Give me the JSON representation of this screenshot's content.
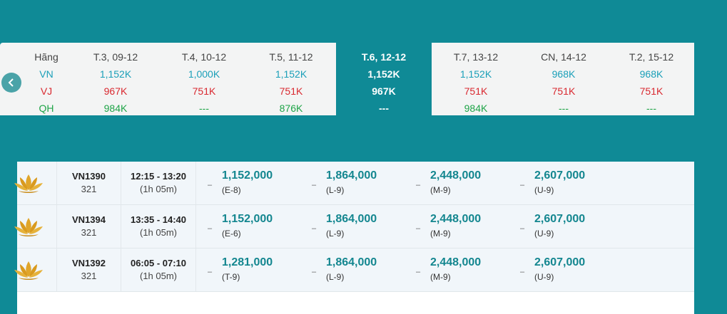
{
  "date_strip": {
    "prev_icon": "chevron-left-icon",
    "airline_header": "Hãng",
    "airline_codes": [
      "VN",
      "VJ",
      "QH"
    ],
    "days": [
      {
        "label": "T.3, 09-12",
        "vn": "1,152K",
        "vj": "967K",
        "qh": "984K",
        "selected": false
      },
      {
        "label": "T.4, 10-12",
        "vn": "1,000K",
        "vj": "751K",
        "qh": "---",
        "selected": false
      },
      {
        "label": "T.5, 11-12",
        "vn": "1,152K",
        "vj": "751K",
        "qh": "876K",
        "selected": false
      },
      {
        "label": "T.6, 12-12",
        "vn": "1,152K",
        "vj": "967K",
        "qh": "---",
        "selected": true
      },
      {
        "label": "T.7, 13-12",
        "vn": "1,152K",
        "vj": "751K",
        "qh": "984K",
        "selected": false
      },
      {
        "label": "CN, 14-12",
        "vn": "968K",
        "vj": "751K",
        "qh": "---",
        "selected": false
      },
      {
        "label": "T.2, 15-12",
        "vn": "968K",
        "vj": "751K",
        "qh": "---",
        "selected": false
      }
    ]
  },
  "flights": [
    {
      "logo_icon": "lotus-logo-icon",
      "number": "VN1390",
      "aircraft": "321",
      "time": "12:15 - 13:20",
      "duration": "(1h 05m)",
      "fares": [
        {
          "price": "1,152,000",
          "class": "(E-8)"
        },
        {
          "price": "1,864,000",
          "class": "(L-9)"
        },
        {
          "price": "2,448,000",
          "class": "(M-9)"
        },
        {
          "price": "2,607,000",
          "class": "(U-9)"
        }
      ]
    },
    {
      "logo_icon": "lotus-logo-icon",
      "number": "VN1394",
      "aircraft": "321",
      "time": "13:35 - 14:40",
      "duration": "(1h 05m)",
      "fares": [
        {
          "price": "1,152,000",
          "class": "(E-6)"
        },
        {
          "price": "1,864,000",
          "class": "(L-9)"
        },
        {
          "price": "2,448,000",
          "class": "(M-9)"
        },
        {
          "price": "2,607,000",
          "class": "(U-9)"
        }
      ]
    },
    {
      "logo_icon": "lotus-logo-icon",
      "number": "VN1392",
      "aircraft": "321",
      "time": "06:05 - 07:10",
      "duration": "(1h 05m)",
      "fares": [
        {
          "price": "1,281,000",
          "class": "(T-9)"
        },
        {
          "price": "1,864,000",
          "class": "(L-9)"
        },
        {
          "price": "2,448,000",
          "class": "(M-9)"
        },
        {
          "price": "2,607,000",
          "class": "(U-9)"
        }
      ]
    }
  ],
  "fare_dash": "–",
  "colors": {
    "background": "#0f8a96",
    "vn": "#1a9fb8",
    "vj": "#d9282f",
    "qh": "#1ea447",
    "price": "#13868f"
  }
}
